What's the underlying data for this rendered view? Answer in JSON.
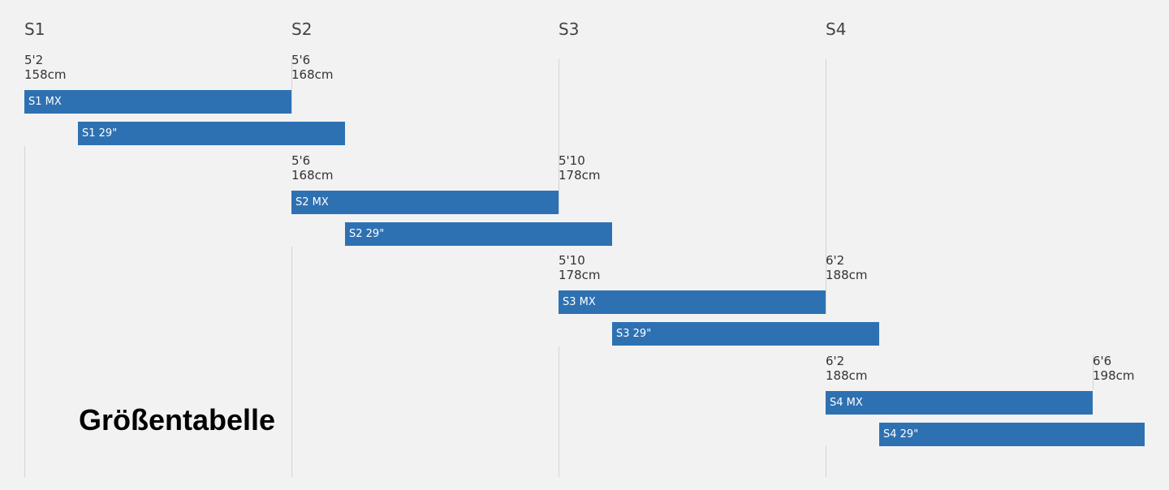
{
  "chart_data": {
    "type": "bar",
    "orientation": "horizontal-range",
    "title": "Größentabelle",
    "columns": [
      {
        "label": "S1",
        "height_cm": 158
      },
      {
        "label": "S2",
        "height_cm": 168
      },
      {
        "label": "S3",
        "height_cm": 178
      },
      {
        "label": "S4",
        "height_cm": 188
      }
    ],
    "height_labels": [
      {
        "ft": "5'2",
        "cm": "158cm",
        "height_cm": 158,
        "row": 0
      },
      {
        "ft": "5'6",
        "cm": "168cm",
        "height_cm": 168,
        "row": 0
      },
      {
        "ft": "5'6",
        "cm": "168cm",
        "height_cm": 168,
        "row": 1
      },
      {
        "ft": "5'10",
        "cm": "178cm",
        "height_cm": 178,
        "row": 1
      },
      {
        "ft": "5'10",
        "cm": "178cm",
        "height_cm": 178,
        "row": 2
      },
      {
        "ft": "6'2",
        "cm": "188cm",
        "height_cm": 188,
        "row": 2
      },
      {
        "ft": "6'2",
        "cm": "188cm",
        "height_cm": 188,
        "row": 3
      },
      {
        "ft": "6'6",
        "cm": "198cm",
        "height_cm": 198,
        "row": 3
      }
    ],
    "series": [
      {
        "name": "S1 MX",
        "start_cm": 158,
        "end_cm": 168,
        "row": 0,
        "slot": 0
      },
      {
        "name": "S1 29\"",
        "start_cm": 160,
        "end_cm": 170,
        "row": 0,
        "slot": 1
      },
      {
        "name": "S2 MX",
        "start_cm": 168,
        "end_cm": 178,
        "row": 1,
        "slot": 0
      },
      {
        "name": "S2 29\"",
        "start_cm": 170,
        "end_cm": 180,
        "row": 1,
        "slot": 1
      },
      {
        "name": "S3 MX",
        "start_cm": 178,
        "end_cm": 188,
        "row": 2,
        "slot": 0
      },
      {
        "name": "S3 29\"",
        "start_cm": 180,
        "end_cm": 190,
        "row": 2,
        "slot": 1
      },
      {
        "name": "S4 MX",
        "start_cm": 188,
        "end_cm": 198,
        "row": 3,
        "slot": 0
      },
      {
        "name": "S4 29\"",
        "start_cm": 190,
        "end_cm": 200,
        "row": 3,
        "slot": 1
      }
    ],
    "xlim": [
      158,
      200
    ],
    "grid": true,
    "colors": {
      "bar": "#2e71b2",
      "gridline": "#d4d4d4",
      "background": "#f2f2f2"
    }
  }
}
